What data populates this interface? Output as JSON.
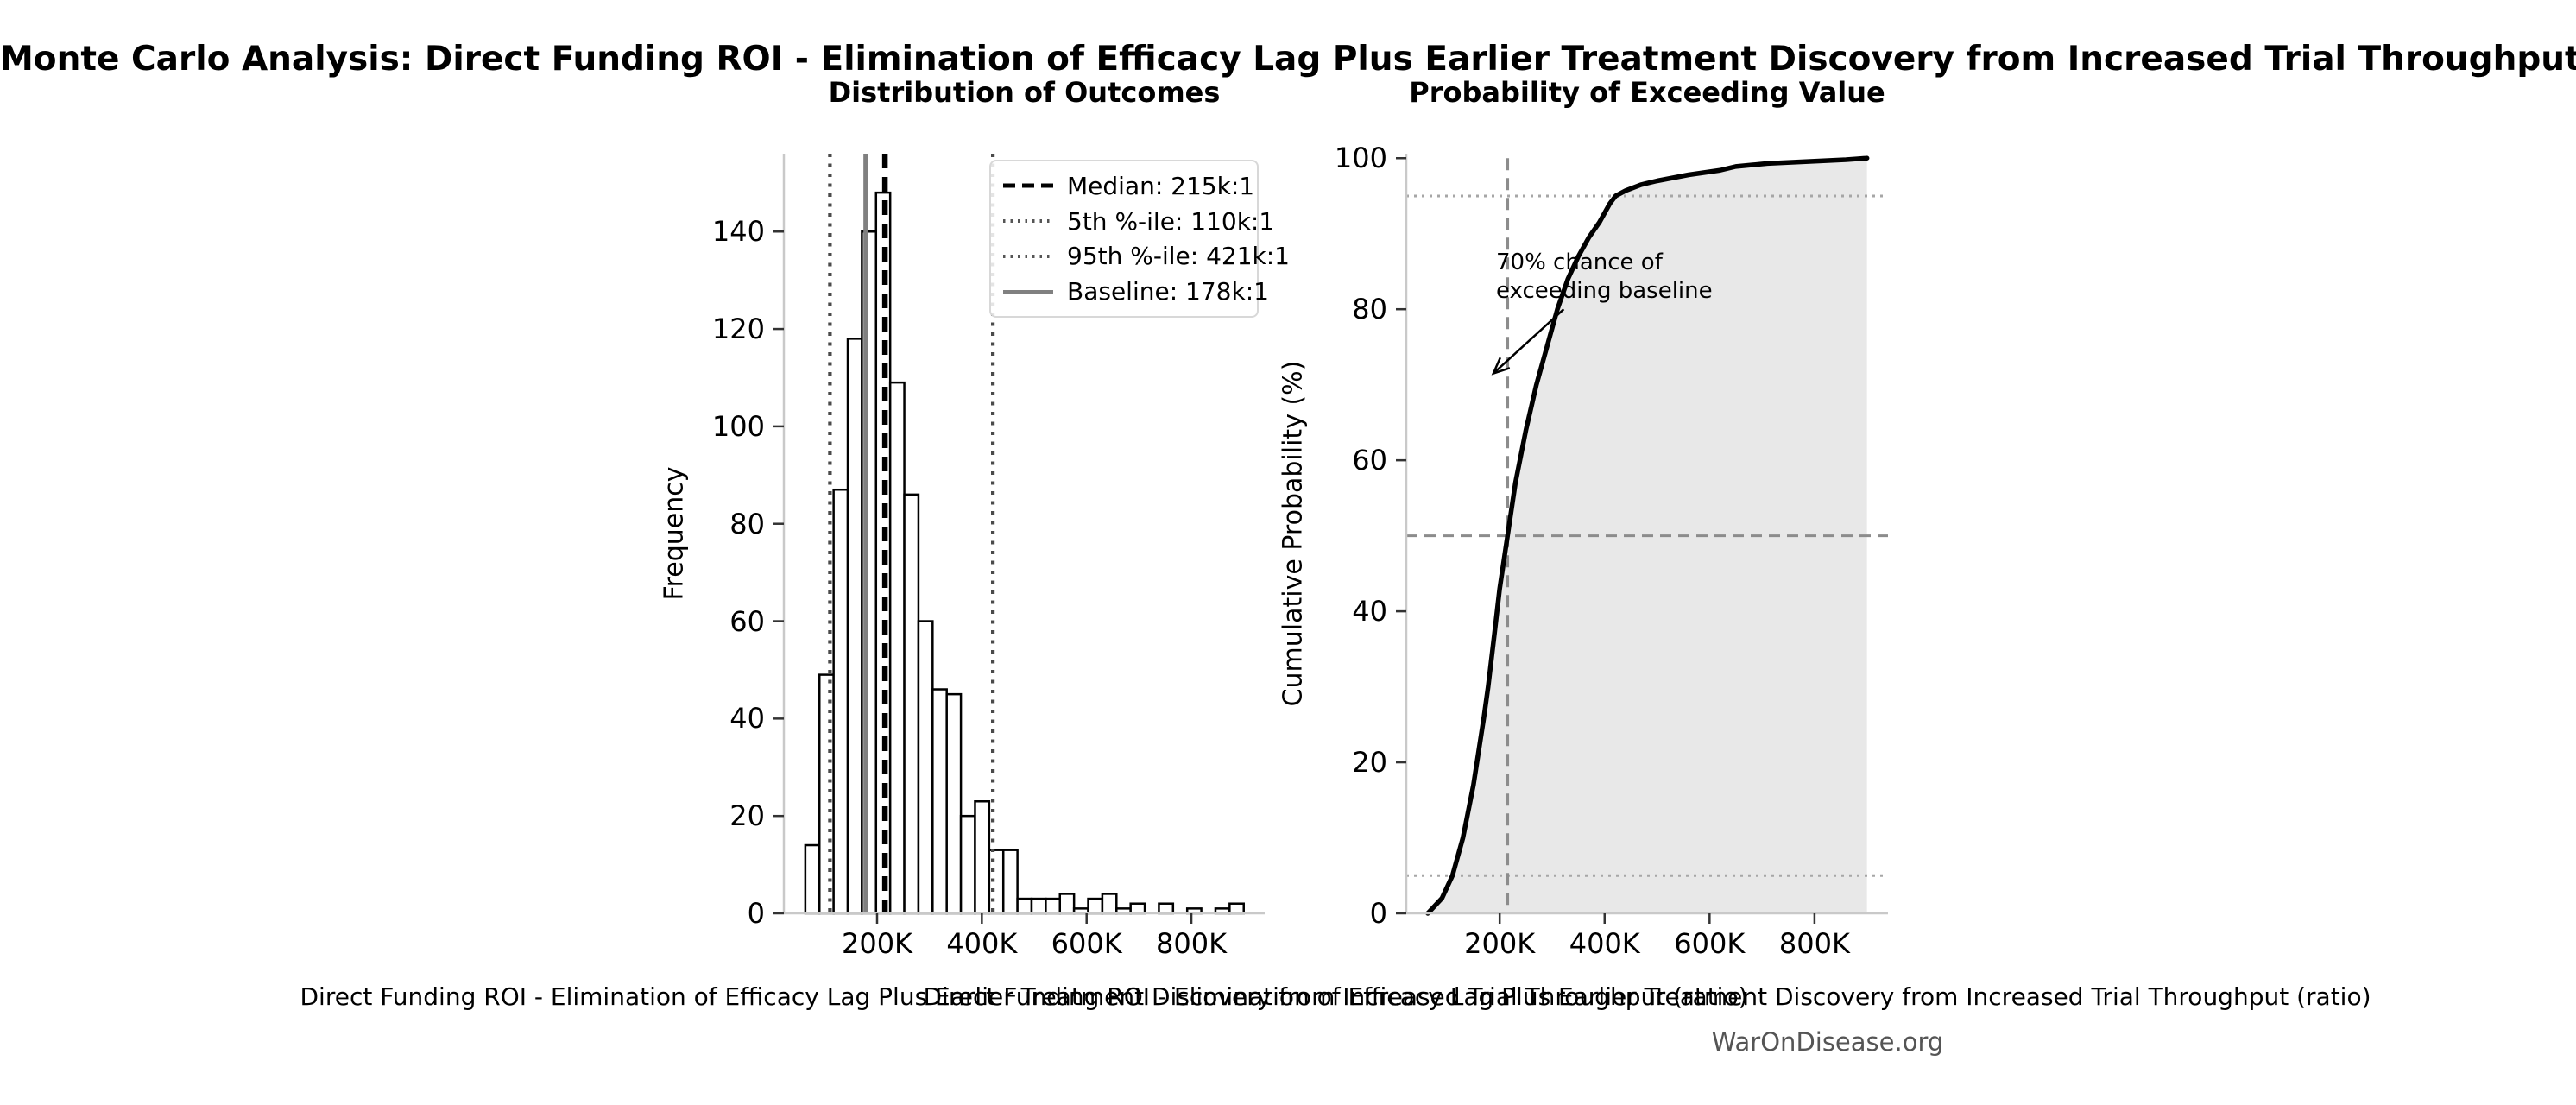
{
  "figure": {
    "suptitle": "Monte Carlo Analysis: Direct Funding ROI - Elimination of Efficacy Lag Plus Earlier Treatment Discovery from Increased Trial Throughput",
    "watermark": "WarOnDisease.org",
    "background_color": "#ffffff"
  },
  "colors": {
    "bar_fill": "#ffffff",
    "bar_edge": "#000000",
    "median_line": "#000000",
    "percentile_line": "#4a4a4a",
    "baseline_line": "#808080",
    "cdf_line": "#000000",
    "cdf_fill": "#e8e8e8",
    "reference_dashed": "#8c8c8c",
    "reference_dotted": "#a6a6a6",
    "spine": "#c9c9c9",
    "tick_mark": "#333333",
    "text": "#000000",
    "watermark_color": "#555555"
  },
  "chart_data": [
    {
      "type": "bar",
      "name": "outcome-histogram",
      "title": "Distribution of Outcomes",
      "xlabel": "Direct Funding ROI - Elimination of Efficacy Lag Plus Earlier Treatment Discovery from Increased Trial Throughput (ratio)",
      "ylabel": "Frequency",
      "bin_start": 63000,
      "bin_width": 27000,
      "counts": [
        14,
        49,
        87,
        118,
        140,
        148,
        109,
        86,
        60,
        46,
        45,
        20,
        23,
        13,
        13,
        3,
        3,
        3,
        4,
        1,
        3,
        4,
        1,
        2,
        0,
        2,
        0,
        1,
        0,
        1,
        2
      ],
      "xlim": [
        22000,
        940000
      ],
      "ylim": [
        0,
        156
      ],
      "xticks": {
        "values": [
          200000,
          400000,
          600000,
          800000
        ],
        "labels": [
          "200K",
          "400K",
          "600K",
          "800K"
        ]
      },
      "yticks": {
        "values": [
          0,
          20,
          40,
          60,
          80,
          100,
          120,
          140
        ],
        "labels": [
          "0",
          "20",
          "40",
          "60",
          "80",
          "100",
          "120",
          "140"
        ]
      },
      "grid": false,
      "vlines": [
        {
          "name": "5th-percentile",
          "value": 110000,
          "style": "dotted"
        },
        {
          "name": "95th-percentile",
          "value": 421000,
          "style": "dotted"
        },
        {
          "name": "baseline",
          "value": 178000,
          "style": "solid"
        },
        {
          "name": "median",
          "value": 215000,
          "style": "dashed"
        }
      ],
      "legend": {
        "position": "upper right",
        "items": [
          {
            "label": "Median: 215k:1",
            "line": "dashed-black"
          },
          {
            "label": "5th %-ile: 110k:1",
            "line": "dotted-gray"
          },
          {
            "label": "95th %-ile: 421k:1",
            "line": "dotted-gray"
          },
          {
            "label": "Baseline: 178k:1",
            "line": "solid-gray"
          }
        ]
      }
    },
    {
      "type": "line",
      "name": "cumulative-probability-curve",
      "title": "Probability of Exceeding Value",
      "xlabel": "Direct Funding ROI - Elimination of Efficacy Lag Plus Earlier Treatment Discovery from Increased Trial Throughput (ratio)",
      "ylabel": "Cumulative Probability (%)",
      "x": [
        63000,
        90000,
        110000,
        130000,
        150000,
        170000,
        178000,
        190000,
        200000,
        215000,
        230000,
        250000,
        270000,
        290000,
        310000,
        330000,
        350000,
        370000,
        390000,
        410000,
        421000,
        440000,
        470000,
        500000,
        530000,
        560000,
        590000,
        620000,
        650000,
        680000,
        710000,
        740000,
        770000,
        800000,
        830000,
        860000,
        880000,
        900000
      ],
      "y": [
        0,
        2,
        5,
        10,
        17,
        26,
        30,
        37,
        43,
        50,
        57,
        64,
        70,
        75,
        80,
        84,
        87,
        89.5,
        91.5,
        94,
        95,
        95.7,
        96.5,
        97,
        97.4,
        97.8,
        98.1,
        98.4,
        98.9,
        99.1,
        99.3,
        99.4,
        99.5,
        99.6,
        99.7,
        99.8,
        99.9,
        100
      ],
      "fill_under_curve": true,
      "xlim": [
        22000,
        940000
      ],
      "ylim": [
        0,
        100.6
      ],
      "xticks": {
        "values": [
          200000,
          400000,
          600000,
          800000
        ],
        "labels": [
          "200K",
          "400K",
          "600K",
          "800K"
        ]
      },
      "yticks": {
        "values": [
          0,
          20,
          40,
          60,
          80,
          100
        ],
        "labels": [
          "0",
          "20",
          "40",
          "60",
          "80",
          "100"
        ]
      },
      "grid": false,
      "hlines": [
        {
          "name": "50-percent",
          "value": 50,
          "style": "dashed"
        },
        {
          "name": "5-percent",
          "value": 5,
          "style": "dotted"
        },
        {
          "name": "95-percent",
          "value": 95,
          "style": "dotted"
        }
      ],
      "vlines": [
        {
          "name": "median",
          "value": 215000,
          "style": "dashed"
        }
      ],
      "annotation": {
        "line1": "70% chance of",
        "line2": "exceeding baseline",
        "arrow_start": {
          "x": 322000,
          "y": 80
        },
        "arrow_tip": {
          "x": 188000,
          "y": 71.5
        }
      }
    }
  ]
}
